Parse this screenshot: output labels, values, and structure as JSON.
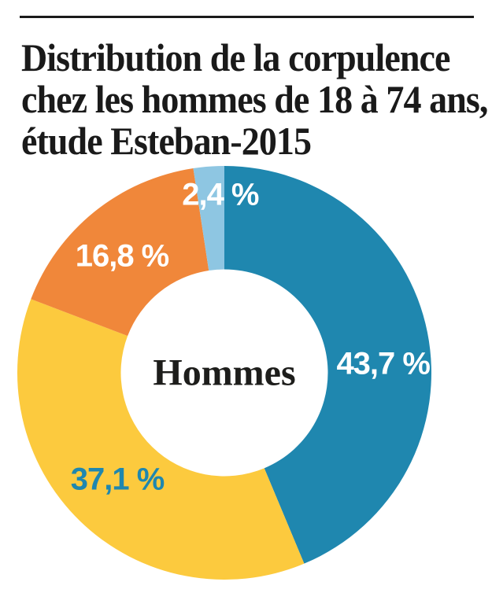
{
  "page": {
    "background": "#ffffff"
  },
  "header": {
    "rule_color": "#1a1a1a",
    "title_color": "#1a1a1a",
    "title_lines": [
      "Distribution de la corpulence",
      "chez les hommes de 18 à 74 ans,",
      "étude Esteban-2015"
    ]
  },
  "chart_data": {
    "type": "pie",
    "subtype": "donut",
    "title": "Distribution de la corpulence chez les hommes de 18 à 74 ans, étude Esteban-2015",
    "center_label": "Hommes",
    "units": "%",
    "legend_position": "none",
    "start_angle_deg": 0,
    "direction": "clockwise",
    "inner_radius_ratio": 0.5,
    "slices": [
      {
        "value": 43.7,
        "label": "43,7 %",
        "color": "#1f87af",
        "label_color": "#ffffff",
        "label_angle_deg": 87,
        "label_radius_ratio": 0.768
      },
      {
        "value": 37.1,
        "label": "37,1 %",
        "color": "#fcca3e",
        "label_color": "#1f87af",
        "label_angle_deg": 225,
        "label_radius_ratio": 0.731
      },
      {
        "value": 16.8,
        "label": "16,8 %",
        "color": "#f0873a",
        "label_color": "#ffffff",
        "label_angle_deg": 318.7,
        "label_radius_ratio": 0.749
      },
      {
        "value": 2.4,
        "label": "2,4 %",
        "color": "#8ec6e2",
        "label_color": "#ffffff",
        "label_angle_deg": 358.7,
        "label_radius_ratio": 0.859
      }
    ]
  }
}
